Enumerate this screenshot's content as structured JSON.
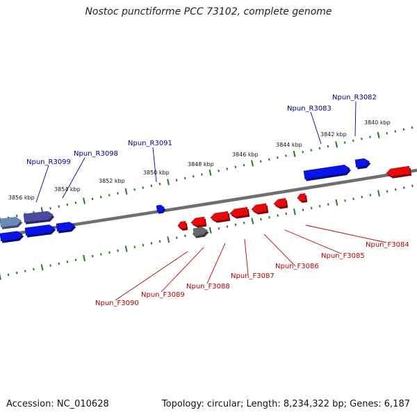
{
  "title": "Nostoc punctiforme PCC 73102, complete genome",
  "footer": {
    "accession": "Accession: NC_010628",
    "summary": "Topology: circular; Length: 8,234,322 bp; Genes: 6,187"
  },
  "scale_ticks": [
    "3856 kbp",
    "3854 kbp",
    "3852 kbp",
    "3850 kbp",
    "3848 kbp",
    "3846 kbp",
    "3844 kbp",
    "3842 kbp",
    "3840 kbp"
  ],
  "reverse_genes": [
    "Npun_R3099",
    "Npun_R3098",
    "Npun_R3091",
    "Npun_R3083",
    "Npun_R3082"
  ],
  "forward_genes": [
    "Npun_F3090",
    "Npun_F3089",
    "Npun_F3088",
    "Npun_F3087",
    "Npun_F3086",
    "Npun_F3085",
    "Npun_F3084"
  ],
  "colors": {
    "reverse_gene": "#0a14e6",
    "forward_gene": "#e60a0a",
    "reverse_label": "#00008b",
    "forward_label": "#b40000",
    "tick": "#1e7d1e",
    "backbone": "#808080"
  }
}
